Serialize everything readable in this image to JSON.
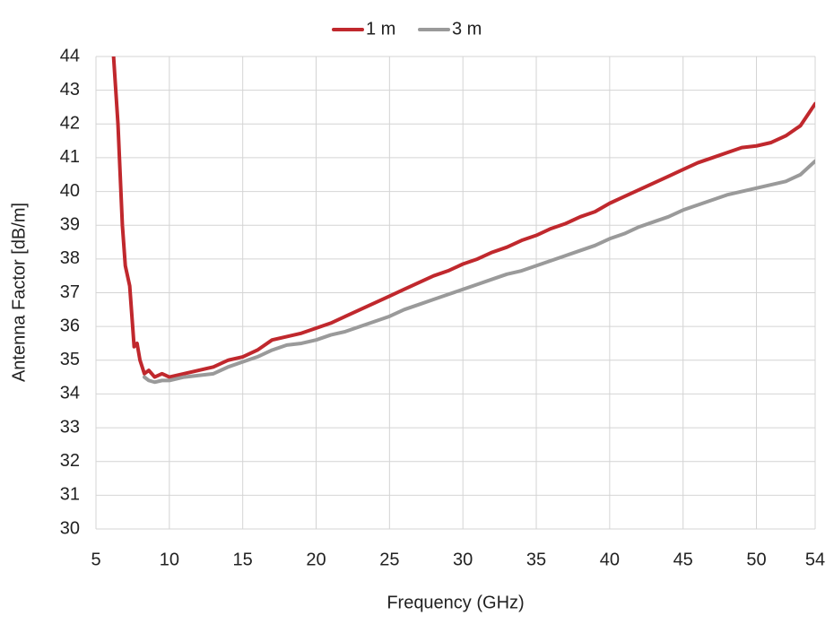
{
  "chart_data": {
    "type": "line",
    "x_label": "Frequency (GHz)",
    "y_label": "Antenna Factor [dB/m]",
    "x": [
      6.2,
      6.5,
      6.8,
      7.0,
      7.3,
      7.6,
      7.8,
      8.0,
      8.3,
      8.6,
      9,
      9.5,
      10,
      11,
      12,
      13,
      14,
      15,
      16,
      17,
      18,
      19,
      20,
      21,
      22,
      23,
      24,
      25,
      26,
      27,
      28,
      29,
      30,
      31,
      32,
      33,
      34,
      35,
      36,
      37,
      38,
      39,
      40,
      41,
      42,
      43,
      44,
      45,
      46,
      47,
      48,
      49,
      50,
      51,
      52,
      53,
      54
    ],
    "series": [
      {
        "name": "1 m",
        "color": "#c0282d",
        "values": [
          44,
          42,
          39,
          37.8,
          37.2,
          35.4,
          35.5,
          35.0,
          34.6,
          34.7,
          34.5,
          34.6,
          34.5,
          34.6,
          34.7,
          34.8,
          35.0,
          35.1,
          35.3,
          35.6,
          35.7,
          35.8,
          35.95,
          36.1,
          36.3,
          36.5,
          36.7,
          36.9,
          37.1,
          37.3,
          37.5,
          37.65,
          37.85,
          38.0,
          38.2,
          38.35,
          38.55,
          38.7,
          38.9,
          39.05,
          39.25,
          39.4,
          39.65,
          39.85,
          40.05,
          40.25,
          40.45,
          40.65,
          40.85,
          41.0,
          41.15,
          41.3,
          41.35,
          41.45,
          41.65,
          41.95,
          42.6
        ]
      },
      {
        "name": "3 m",
        "color": "#9a9a9a",
        "values": [
          null,
          null,
          null,
          null,
          null,
          null,
          null,
          null,
          34.5,
          34.4,
          34.35,
          34.4,
          34.4,
          34.5,
          34.55,
          34.6,
          34.8,
          34.95,
          35.1,
          35.3,
          35.45,
          35.5,
          35.6,
          35.75,
          35.85,
          36.0,
          36.15,
          36.3,
          36.5,
          36.65,
          36.8,
          36.95,
          37.1,
          37.25,
          37.4,
          37.55,
          37.65,
          37.8,
          37.95,
          38.1,
          38.25,
          38.4,
          38.6,
          38.75,
          38.95,
          39.1,
          39.25,
          39.45,
          39.6,
          39.75,
          39.9,
          40.0,
          40.1,
          40.2,
          40.3,
          40.5,
          40.9
        ]
      }
    ],
    "xlim": [
      5,
      54
    ],
    "xticks": [
      5,
      10,
      15,
      20,
      25,
      30,
      35,
      40,
      45,
      50,
      54
    ],
    "ylim": [
      30,
      44
    ],
    "yticks": [
      30,
      31,
      32,
      33,
      34,
      35,
      36,
      37,
      38,
      39,
      40,
      41,
      42,
      43,
      44
    ],
    "grid": true
  }
}
